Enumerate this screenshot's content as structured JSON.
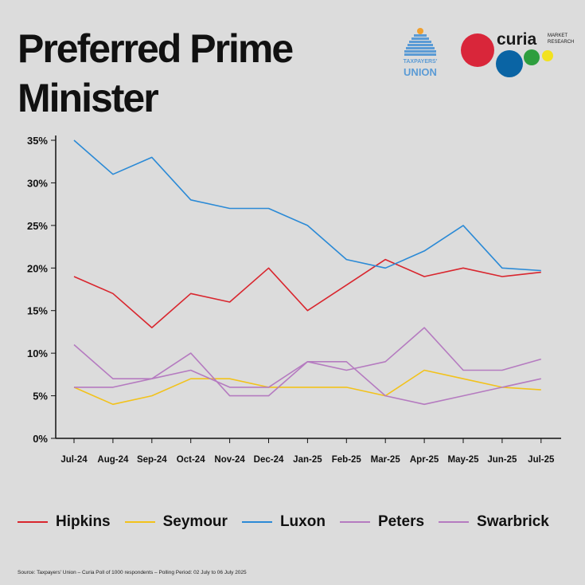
{
  "title": "Preferred Prime Minister",
  "source": "Source: Taxpayers' Union – Curia Poll of 1000 respondents – Polling Period: 02 July to 06 July 2025",
  "logos": {
    "taxpayers_union": {
      "line1": "TAXPAYERS'",
      "line2": "UNION",
      "icon": "parliament-dome-icon",
      "color": "#5b9bd5"
    },
    "curia": {
      "word": "curia",
      "sub1": "MARKET",
      "sub2": "RESEARCH",
      "dot_colors": [
        "#d9263a",
        "#0a64a4",
        "#2e9e3e",
        "#f2e21f"
      ]
    }
  },
  "chart_data": {
    "type": "line",
    "categories": [
      "Jul-24",
      "Aug-24",
      "Sep-24",
      "Oct-24",
      "Nov-24",
      "Dec-24",
      "Jan-25",
      "Feb-25",
      "Mar-25",
      "Apr-25",
      "May-25",
      "Jun-25",
      "Jul-25"
    ],
    "yticks": [
      "0%",
      "5%",
      "10%",
      "15%",
      "20%",
      "25%",
      "30%",
      "35%"
    ],
    "ylim": [
      0,
      35
    ],
    "grid": false,
    "legend_position": "bottom",
    "series": [
      {
        "name": "Hipkins",
        "color": "#d9262e",
        "values": [
          19,
          17,
          13,
          17,
          16,
          20,
          15,
          18,
          21,
          19,
          20,
          19,
          19.5
        ]
      },
      {
        "name": "Seymour",
        "color": "#f2c21b",
        "values": [
          6,
          4,
          5,
          7,
          7,
          6,
          6,
          6,
          5,
          8,
          7,
          6,
          5.7
        ]
      },
      {
        "name": "Luxon",
        "color": "#2b8ad6",
        "values": [
          35,
          31,
          33,
          28,
          27,
          27,
          25,
          21,
          20,
          22,
          25,
          20,
          19.7
        ]
      },
      {
        "name": "Peters",
        "color": "#b57bc0",
        "values": [
          11,
          7,
          7,
          8,
          6,
          6,
          9,
          8,
          9,
          13,
          8,
          8,
          9.3
        ]
      },
      {
        "name": "Swarbrick",
        "color": "#b57bc0",
        "values": [
          6,
          6,
          7,
          10,
          5,
          5,
          9,
          9,
          5,
          4,
          5,
          6,
          7
        ]
      }
    ]
  }
}
